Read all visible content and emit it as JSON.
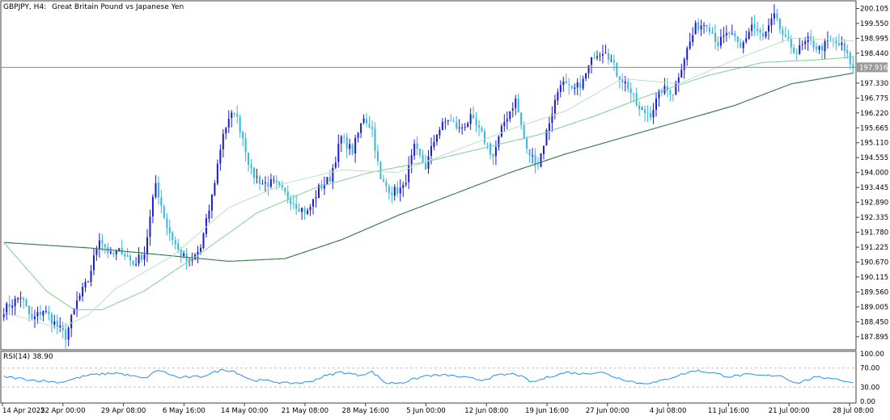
{
  "header": {
    "symbol_timeframe": "GBPJPY, H4:",
    "description": "Great Britain Pound vs Japanese Yen"
  },
  "rsi_panel": {
    "label": "RSI(14) 38.90",
    "levels": [
      "100.00",
      "70.00",
      "30.00",
      "0.00"
    ]
  },
  "colors": {
    "bull_candle": "#1a1adb",
    "bear_candle": "#2fb9dd",
    "ma_fast": "#b9e3c4",
    "ma_mid": "#7ccf8f",
    "ma_slow": "#3f7f4f",
    "rsi_line": "#1e90ff",
    "price_line": "#8a8a8a",
    "price_tag_bg": "#9a9a9a"
  },
  "chart_data": {
    "type": "candlestick",
    "symbol": "GBPJPY",
    "timeframe": "H4",
    "current_price": 197.916,
    "ylim": [
      187.5,
      200.3
    ],
    "price_ticks": [
      "200.105",
      "199.550",
      "198.995",
      "198.440",
      "197.885",
      "197.330",
      "196.775",
      "196.220",
      "195.665",
      "195.110",
      "194.555",
      "194.000",
      "193.445",
      "192.890",
      "192.335",
      "191.780",
      "191.225",
      "190.670",
      "190.115",
      "189.560",
      "189.005",
      "188.450",
      "187.895"
    ],
    "x_tick_labels": [
      "14 Apr 2025",
      "22 Apr 00:00",
      "29 Apr 08:00",
      "6 May 16:00",
      "14 May 00:00",
      "21 May 08:00",
      "28 May 16:00",
      "5 Jun 00:00",
      "12 Jun 08:00",
      "19 Jun 16:00",
      "27 Jun 00:00",
      "4 Jul 08:00",
      "11 Jul 16:00",
      "21 Jul 00:00",
      "28 Jul 08:00"
    ],
    "close_anchors": [
      [
        0,
        188.9
      ],
      [
        6,
        189.4
      ],
      [
        10,
        188.5
      ],
      [
        14,
        188.9
      ],
      [
        18,
        188.4
      ],
      [
        22,
        187.9
      ],
      [
        26,
        189.2
      ],
      [
        30,
        190.0
      ],
      [
        34,
        191.6
      ],
      [
        38,
        190.9
      ],
      [
        42,
        191.1
      ],
      [
        46,
        190.6
      ],
      [
        50,
        191.0
      ],
      [
        54,
        193.6
      ],
      [
        58,
        192.0
      ],
      [
        62,
        191.1
      ],
      [
        66,
        190.6
      ],
      [
        70,
        191.2
      ],
      [
        74,
        193.1
      ],
      [
        78,
        195.5
      ],
      [
        82,
        196.3
      ],
      [
        85,
        195.3
      ],
      [
        88,
        194.0
      ],
      [
        92,
        193.6
      ],
      [
        96,
        193.6
      ],
      [
        100,
        193.2
      ],
      [
        104,
        192.8
      ],
      [
        108,
        192.5
      ],
      [
        112,
        193.4
      ],
      [
        116,
        193.8
      ],
      [
        120,
        195.3
      ],
      [
        124,
        194.8
      ],
      [
        128,
        196.1
      ],
      [
        131,
        195.6
      ],
      [
        134,
        193.7
      ],
      [
        138,
        193.3
      ],
      [
        142,
        193.4
      ],
      [
        146,
        194.9
      ],
      [
        150,
        194.2
      ],
      [
        154,
        195.5
      ],
      [
        158,
        196.0
      ],
      [
        162,
        195.6
      ],
      [
        166,
        196.0
      ],
      [
        170,
        195.4
      ],
      [
        174,
        194.6
      ],
      [
        178,
        195.9
      ],
      [
        182,
        196.7
      ],
      [
        186,
        194.8
      ],
      [
        190,
        194.3
      ],
      [
        194,
        195.9
      ],
      [
        198,
        197.4
      ],
      [
        202,
        197.0
      ],
      [
        206,
        197.4
      ],
      [
        210,
        198.4
      ],
      [
        214,
        198.6
      ],
      [
        218,
        197.7
      ],
      [
        222,
        197.2
      ],
      [
        226,
        196.3
      ],
      [
        230,
        196.2
      ],
      [
        234,
        197.1
      ],
      [
        238,
        197.0
      ],
      [
        242,
        198.3
      ],
      [
        246,
        199.4
      ],
      [
        250,
        199.6
      ],
      [
        254,
        198.8
      ],
      [
        258,
        199.2
      ],
      [
        262,
        198.6
      ],
      [
        266,
        199.5
      ],
      [
        270,
        199.0
      ],
      [
        274,
        199.8
      ],
      [
        278,
        198.9
      ],
      [
        282,
        198.5
      ],
      [
        286,
        198.9
      ],
      [
        290,
        198.6
      ],
      [
        294,
        198.9
      ],
      [
        298,
        198.7
      ],
      [
        302,
        197.916
      ]
    ],
    "ma_fast_anchors": [
      [
        0,
        188.8
      ],
      [
        20,
        188.2
      ],
      [
        30,
        188.7
      ],
      [
        40,
        189.7
      ],
      [
        60,
        190.9
      ],
      [
        80,
        192.7
      ],
      [
        100,
        193.6
      ],
      [
        120,
        194.1
      ],
      [
        140,
        194.0
      ],
      [
        160,
        194.8
      ],
      [
        180,
        195.6
      ],
      [
        200,
        196.3
      ],
      [
        220,
        197.5
      ],
      [
        240,
        197.3
      ],
      [
        260,
        198.2
      ],
      [
        280,
        199.0
      ],
      [
        302,
        198.9
      ]
    ],
    "ma_mid_anchors": [
      [
        0,
        191.4
      ],
      [
        15,
        189.6
      ],
      [
        25,
        188.9
      ],
      [
        35,
        188.9
      ],
      [
        50,
        189.6
      ],
      [
        70,
        191.0
      ],
      [
        90,
        192.5
      ],
      [
        110,
        193.4
      ],
      [
        130,
        194.0
      ],
      [
        150,
        194.4
      ],
      [
        170,
        194.9
      ],
      [
        190,
        195.4
      ],
      [
        210,
        196.1
      ],
      [
        230,
        196.9
      ],
      [
        250,
        197.6
      ],
      [
        270,
        198.1
      ],
      [
        290,
        198.2
      ],
      [
        302,
        198.3
      ]
    ],
    "ma_slow_anchors": [
      [
        0,
        191.4
      ],
      [
        30,
        191.2
      ],
      [
        60,
        190.9
      ],
      [
        80,
        190.7
      ],
      [
        100,
        190.8
      ],
      [
        120,
        191.5
      ],
      [
        140,
        192.4
      ],
      [
        160,
        193.2
      ],
      [
        180,
        194.0
      ],
      [
        200,
        194.7
      ],
      [
        220,
        195.3
      ],
      [
        240,
        195.9
      ],
      [
        260,
        196.5
      ],
      [
        280,
        197.3
      ],
      [
        302,
        197.7
      ]
    ],
    "rsi_anchors": [
      [
        0,
        52
      ],
      [
        10,
        45
      ],
      [
        20,
        40
      ],
      [
        30,
        55
      ],
      [
        40,
        60
      ],
      [
        50,
        48
      ],
      [
        55,
        66
      ],
      [
        62,
        50
      ],
      [
        70,
        52
      ],
      [
        78,
        67
      ],
      [
        82,
        63
      ],
      [
        88,
        45
      ],
      [
        95,
        43
      ],
      [
        100,
        38
      ],
      [
        108,
        40
      ],
      [
        114,
        53
      ],
      [
        120,
        62
      ],
      [
        126,
        55
      ],
      [
        131,
        62
      ],
      [
        136,
        38
      ],
      [
        142,
        40
      ],
      [
        150,
        54
      ],
      [
        158,
        55
      ],
      [
        164,
        50
      ],
      [
        170,
        45
      ],
      [
        176,
        55
      ],
      [
        182,
        58
      ],
      [
        188,
        40
      ],
      [
        194,
        52
      ],
      [
        200,
        61
      ],
      [
        206,
        58
      ],
      [
        212,
        62
      ],
      [
        218,
        50
      ],
      [
        226,
        38
      ],
      [
        232,
        40
      ],
      [
        240,
        55
      ],
      [
        246,
        65
      ],
      [
        252,
        60
      ],
      [
        258,
        52
      ],
      [
        264,
        56
      ],
      [
        270,
        54
      ],
      [
        276,
        55
      ],
      [
        282,
        38
      ],
      [
        288,
        50
      ],
      [
        294,
        50
      ],
      [
        302,
        38.9
      ]
    ]
  }
}
